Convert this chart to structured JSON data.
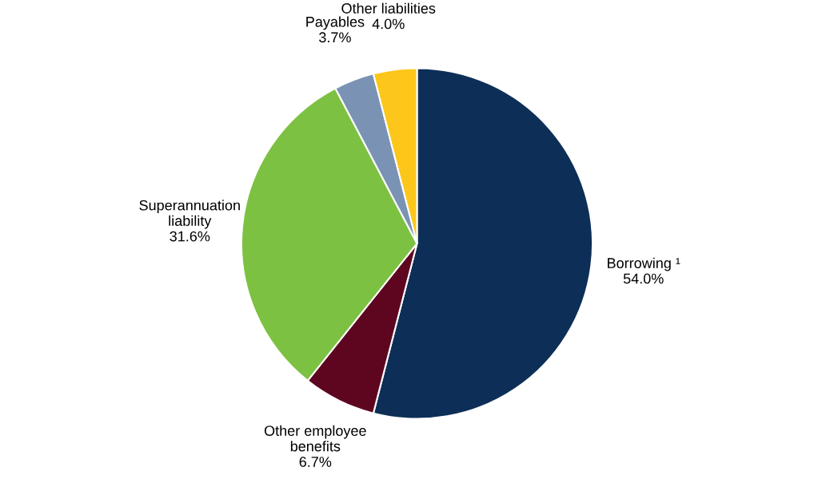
{
  "chart_data": {
    "type": "pie",
    "categories": [
      "Borrowing ¹",
      "Other employee\nbenefits",
      "Superannuation\nliability",
      "Payables",
      "Other liabilities"
    ],
    "values": [
      54.0,
      6.7,
      31.6,
      3.7,
      4.0
    ],
    "value_labels": [
      "54.0%",
      "6.7%",
      "31.6%",
      "3.7%",
      "4.0%"
    ],
    "colors": [
      "#0d2f57",
      "#5e0620",
      "#7dc142",
      "#7a93b4",
      "#fcc61a"
    ],
    "legend": false
  }
}
